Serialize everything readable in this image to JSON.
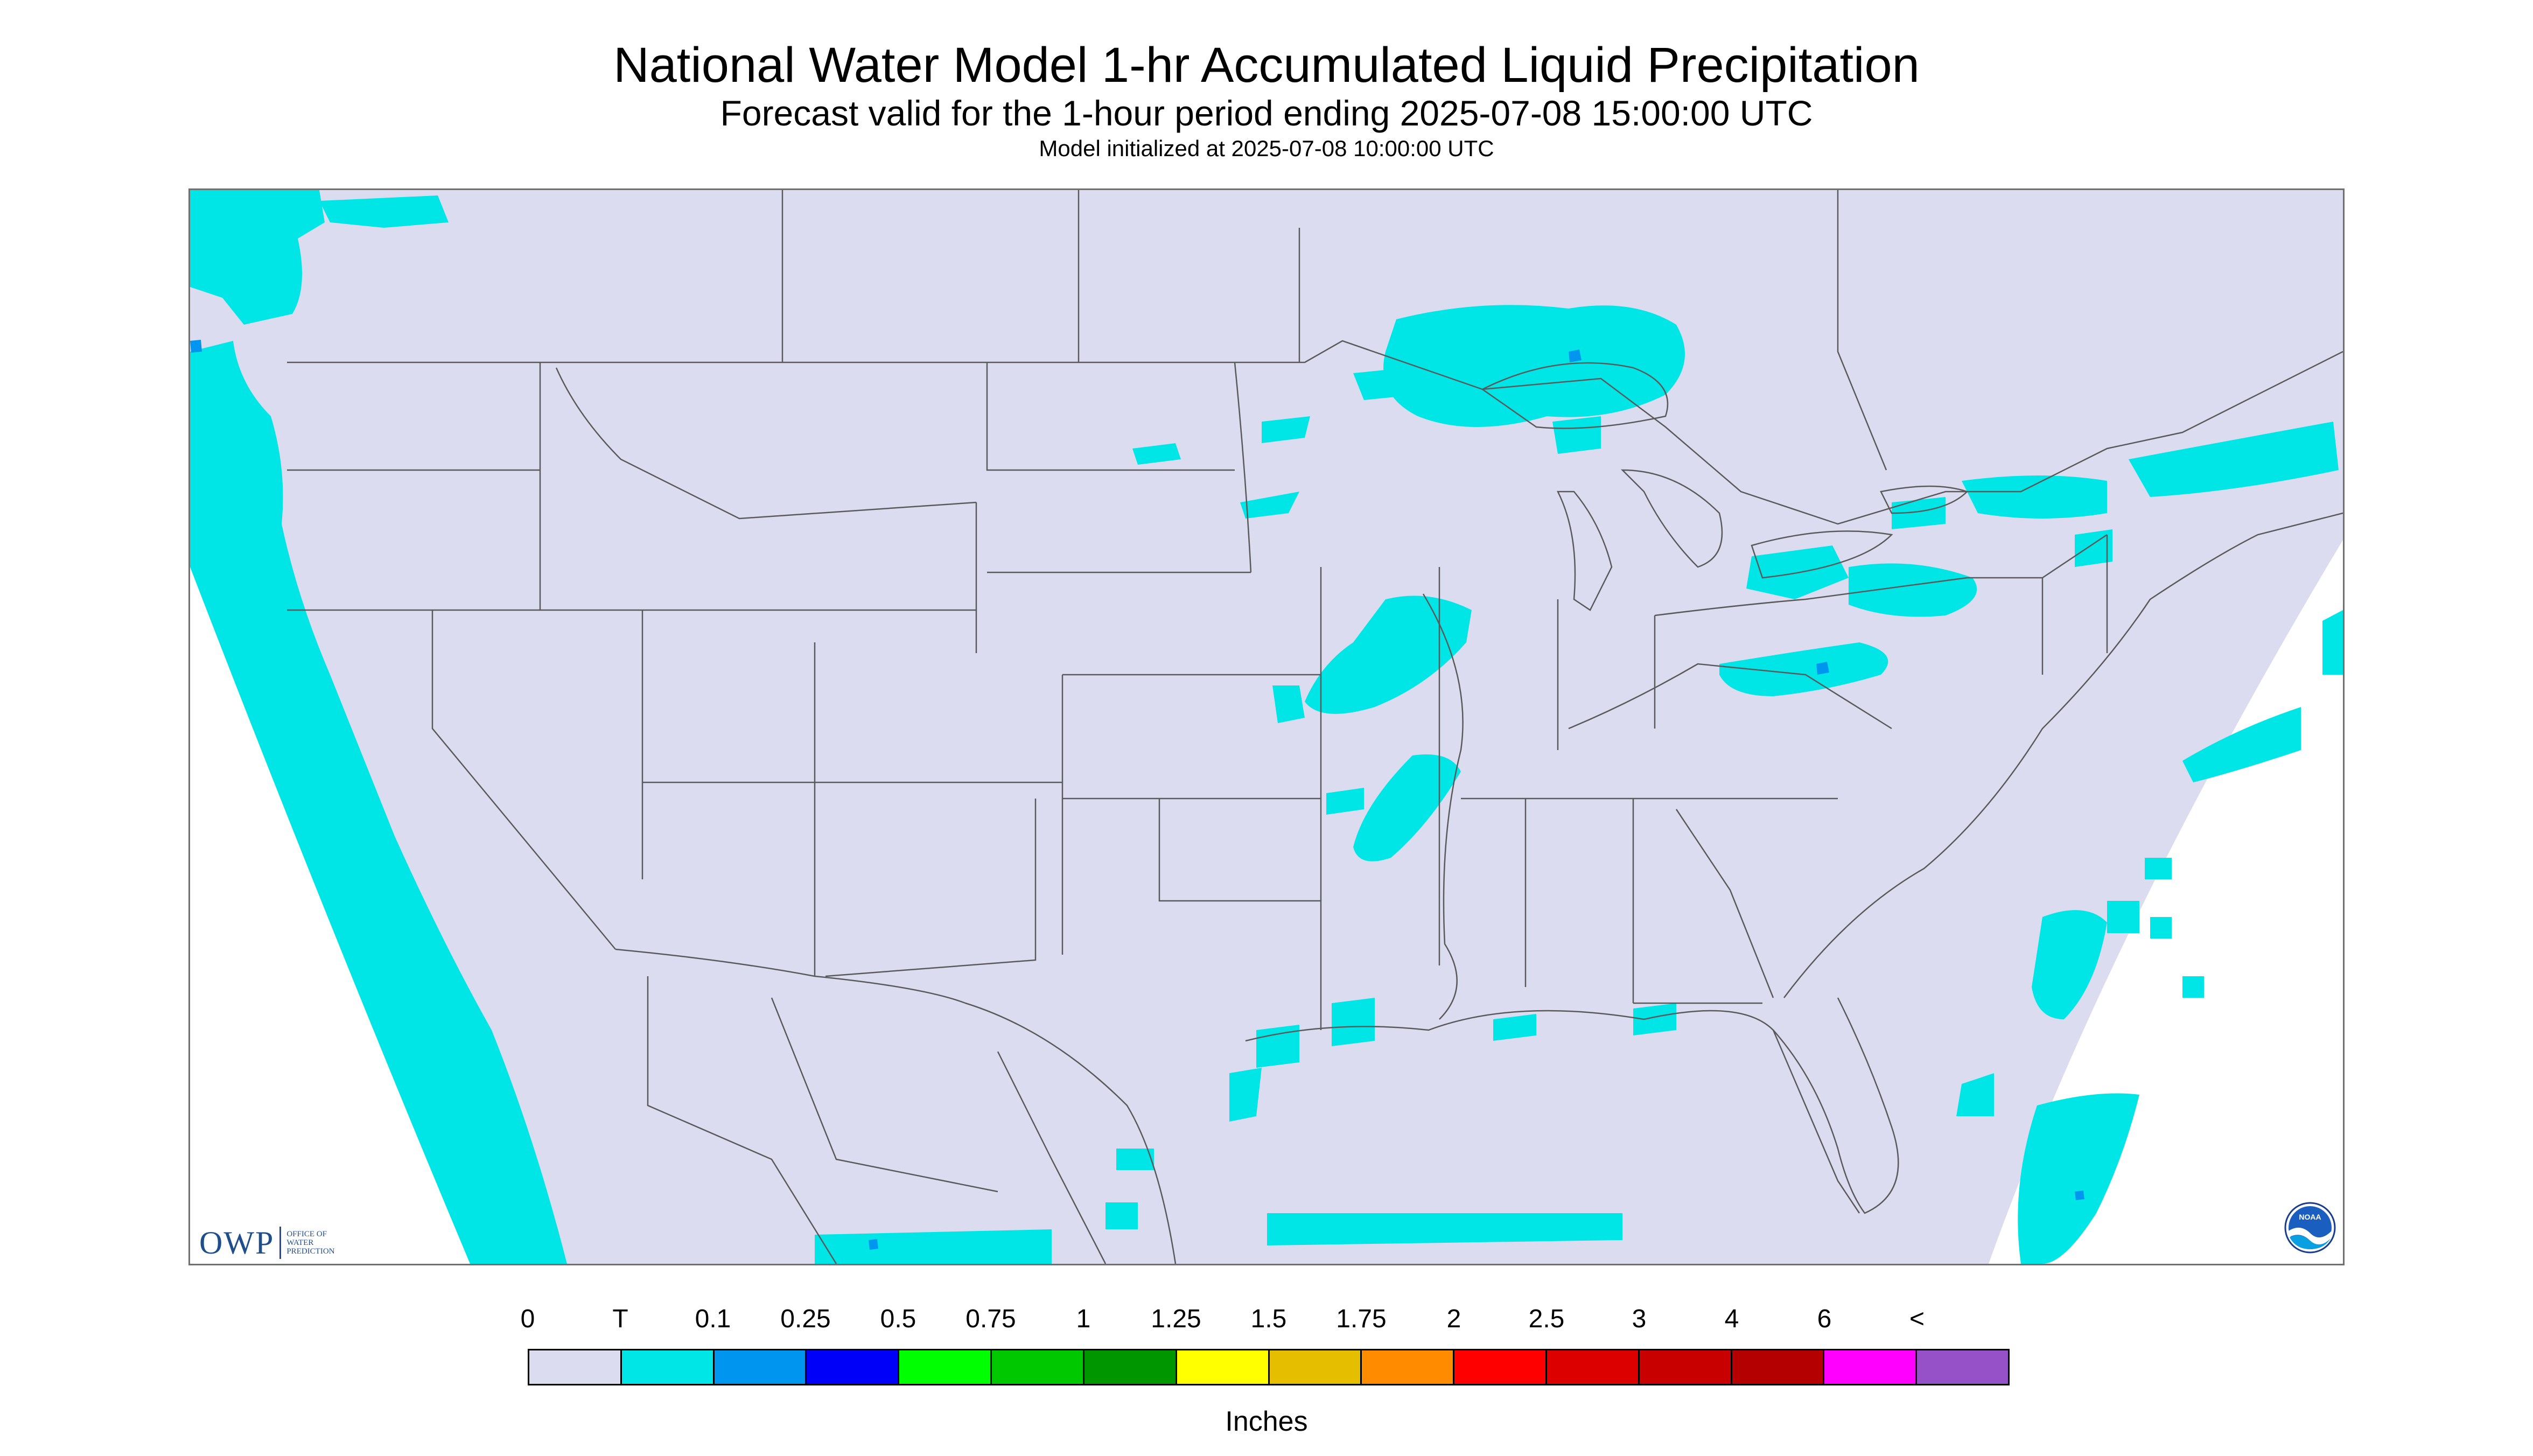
{
  "title": "National Water Model 1-hr Accumulated Liquid Precipitation",
  "subtitle": "Forecast valid for the 1-hour period ending 2025-07-08 15:00:00 UTC",
  "init_line": "Model initialized at 2025-07-08 10:00:00 UTC",
  "logos": {
    "owp": "OWP",
    "owp_sub": [
      "OFFICE OF",
      "WATER",
      "PREDICTION"
    ],
    "noaa": "NOAA"
  },
  "colors": {
    "domain_background": "#dcdcf0",
    "outside_domain": "#ffffff",
    "boundary_lines": "#5a5a5a",
    "trace_precip": "#00e6e6",
    "light_precip": "#0096f0"
  },
  "legend": {
    "units": "Inches",
    "labels": [
      "0",
      "T",
      "0.1",
      "0.25",
      "0.5",
      "0.75",
      "1",
      "1.25",
      "1.5",
      "1.75",
      "2",
      "2.5",
      "3",
      "4",
      "6",
      "<"
    ],
    "colors": [
      "#dcdcf0",
      "#00e6e6",
      "#0096f0",
      "#0000fa",
      "#00ff00",
      "#00c800",
      "#009600",
      "#ffff00",
      "#e6be00",
      "#ff8c00",
      "#ff0000",
      "#dc0000",
      "#c80000",
      "#b40000",
      "#ff00ff",
      "#9650c8"
    ]
  }
}
